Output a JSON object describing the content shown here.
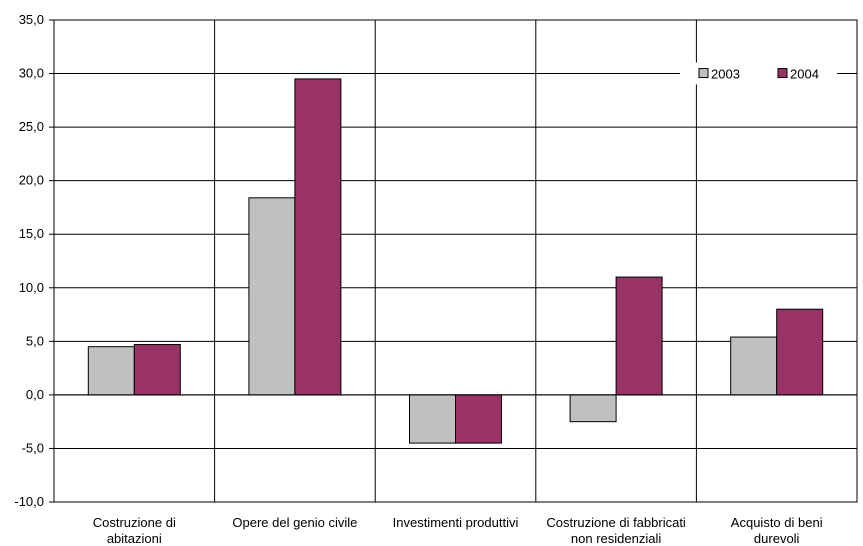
{
  "chart_data": {
    "type": "bar",
    "title": "",
    "xlabel": "",
    "ylabel": "",
    "categories": [
      [
        "Costruzione di",
        "abitazioni"
      ],
      [
        "Opere del genio civile"
      ],
      [
        "Investimenti produttivi"
      ],
      [
        "Costruzione di fabbricati",
        "non residenziali"
      ],
      [
        "Acquisto di beni",
        "durevoli"
      ]
    ],
    "series": [
      {
        "name": "2003",
        "color": "#c0c0c0",
        "values": [
          4.5,
          18.4,
          -4.5,
          -2.5,
          5.4
        ]
      },
      {
        "name": "2004",
        "color": "#993366",
        "values": [
          4.7,
          29.5,
          -4.5,
          11.0,
          8.0
        ]
      }
    ],
    "ylim": [
      -10,
      35
    ],
    "yticks": [
      "-10,0",
      "-5,0",
      "0,0",
      "5,0",
      "10,0",
      "15,0",
      "20,0",
      "25,0",
      "30,0",
      "35,0"
    ],
    "grid": true,
    "legend_position": "top-right"
  }
}
